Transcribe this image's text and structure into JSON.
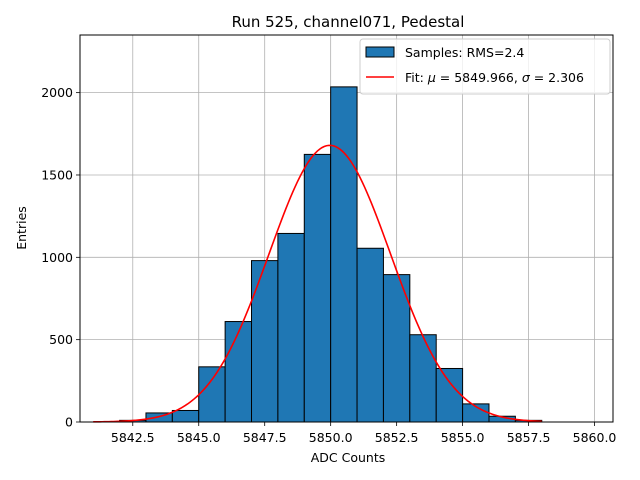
{
  "chart_data": {
    "type": "bar",
    "title": "Run 525, channel071, Pedestal",
    "xlabel": "ADC Counts",
    "ylabel": "Entries",
    "xlim": [
      5840.5,
      5860.7
    ],
    "ylim": [
      0,
      2350
    ],
    "grid": true,
    "legend_position": "top-right",
    "x_ticks": [
      5842.5,
      5845.0,
      5847.5,
      5850.0,
      5852.5,
      5855.0,
      5857.5,
      5860.0
    ],
    "x_tick_labels": [
      "5842.5",
      "5845.0",
      "5847.5",
      "5850.0",
      "5852.5",
      "5855.0",
      "5857.5",
      "5860.0"
    ],
    "y_ticks": [
      0,
      500,
      1000,
      1500,
      2000
    ],
    "y_tick_labels": [
      "0",
      "500",
      "1000",
      "1500",
      "2000"
    ],
    "bins": [
      {
        "x0": 5842,
        "x1": 5843,
        "value": 10
      },
      {
        "x0": 5843,
        "x1": 5844,
        "value": 55
      },
      {
        "x0": 5844,
        "x1": 5845,
        "value": 70
      },
      {
        "x0": 5845,
        "x1": 5846,
        "value": 335
      },
      {
        "x0": 5846,
        "x1": 5847,
        "value": 610
      },
      {
        "x0": 5847,
        "x1": 5848,
        "value": 980
      },
      {
        "x0": 5848,
        "x1": 5849,
        "value": 1145
      },
      {
        "x0": 5849,
        "x1": 5850,
        "value": 1625
      },
      {
        "x0": 5850,
        "x1": 5851,
        "value": 2035
      },
      {
        "x0": 5851,
        "x1": 5852,
        "value": 1055
      },
      {
        "x0": 5852,
        "x1": 5853,
        "value": 895
      },
      {
        "x0": 5853,
        "x1": 5854,
        "value": 530
      },
      {
        "x0": 5854,
        "x1": 5855,
        "value": 325
      },
      {
        "x0": 5855,
        "x1": 5856,
        "value": 110
      },
      {
        "x0": 5856,
        "x1": 5857,
        "value": 35
      },
      {
        "x0": 5857,
        "x1": 5858,
        "value": 10
      }
    ],
    "fit": {
      "mu": 5849.966,
      "sigma": 2.306,
      "amplitude": 1680,
      "x_range": [
        5841,
        5858
      ]
    },
    "series": [
      {
        "name": "Samples: RMS=2.4",
        "color": "#1f77b4",
        "edge_color": "#000000"
      },
      {
        "name": "Fit: μ = 5849.966, σ = 2.306",
        "color": "#ff0000"
      }
    ]
  }
}
